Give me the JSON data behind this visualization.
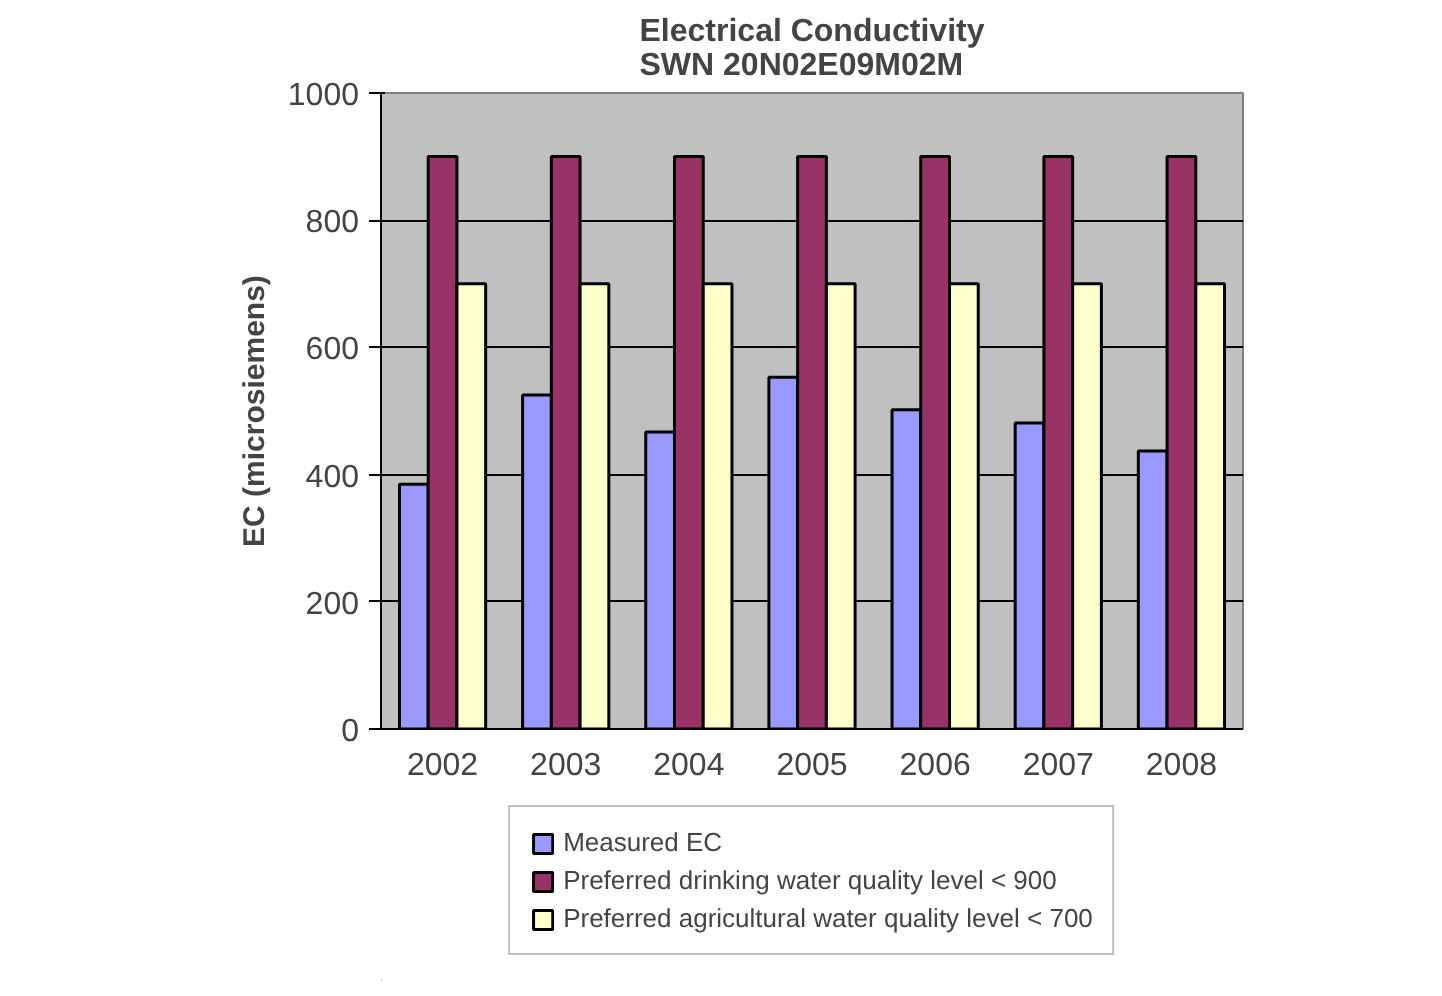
{
  "chart_data": {
    "type": "bar",
    "title": "Electrical Conductivity\nSWN 20N02E09M02M",
    "ylabel": "EC (microsiemens)",
    "categories": [
      "2002",
      "2003",
      "2004",
      "2005",
      "2006",
      "2007",
      "2008"
    ],
    "series": [
      {
        "name": "Measured EC",
        "color": "#9999ff",
        "values": [
          385,
          525,
          467,
          553,
          502,
          481,
          437
        ]
      },
      {
        "name": "Preferred drinking water quality level < 900",
        "color": "#993366",
        "values": [
          900,
          900,
          900,
          900,
          900,
          900,
          900
        ]
      },
      {
        "name": "Preferred agricultural water quality level < 700",
        "color": "#ffffcc",
        "values": [
          700,
          700,
          700,
          700,
          700,
          700,
          700
        ]
      }
    ],
    "ylim": [
      0,
      1000
    ],
    "yticks": [
      0,
      200,
      400,
      600,
      800,
      1000
    ],
    "grid": "y",
    "legend": "bottom"
  }
}
